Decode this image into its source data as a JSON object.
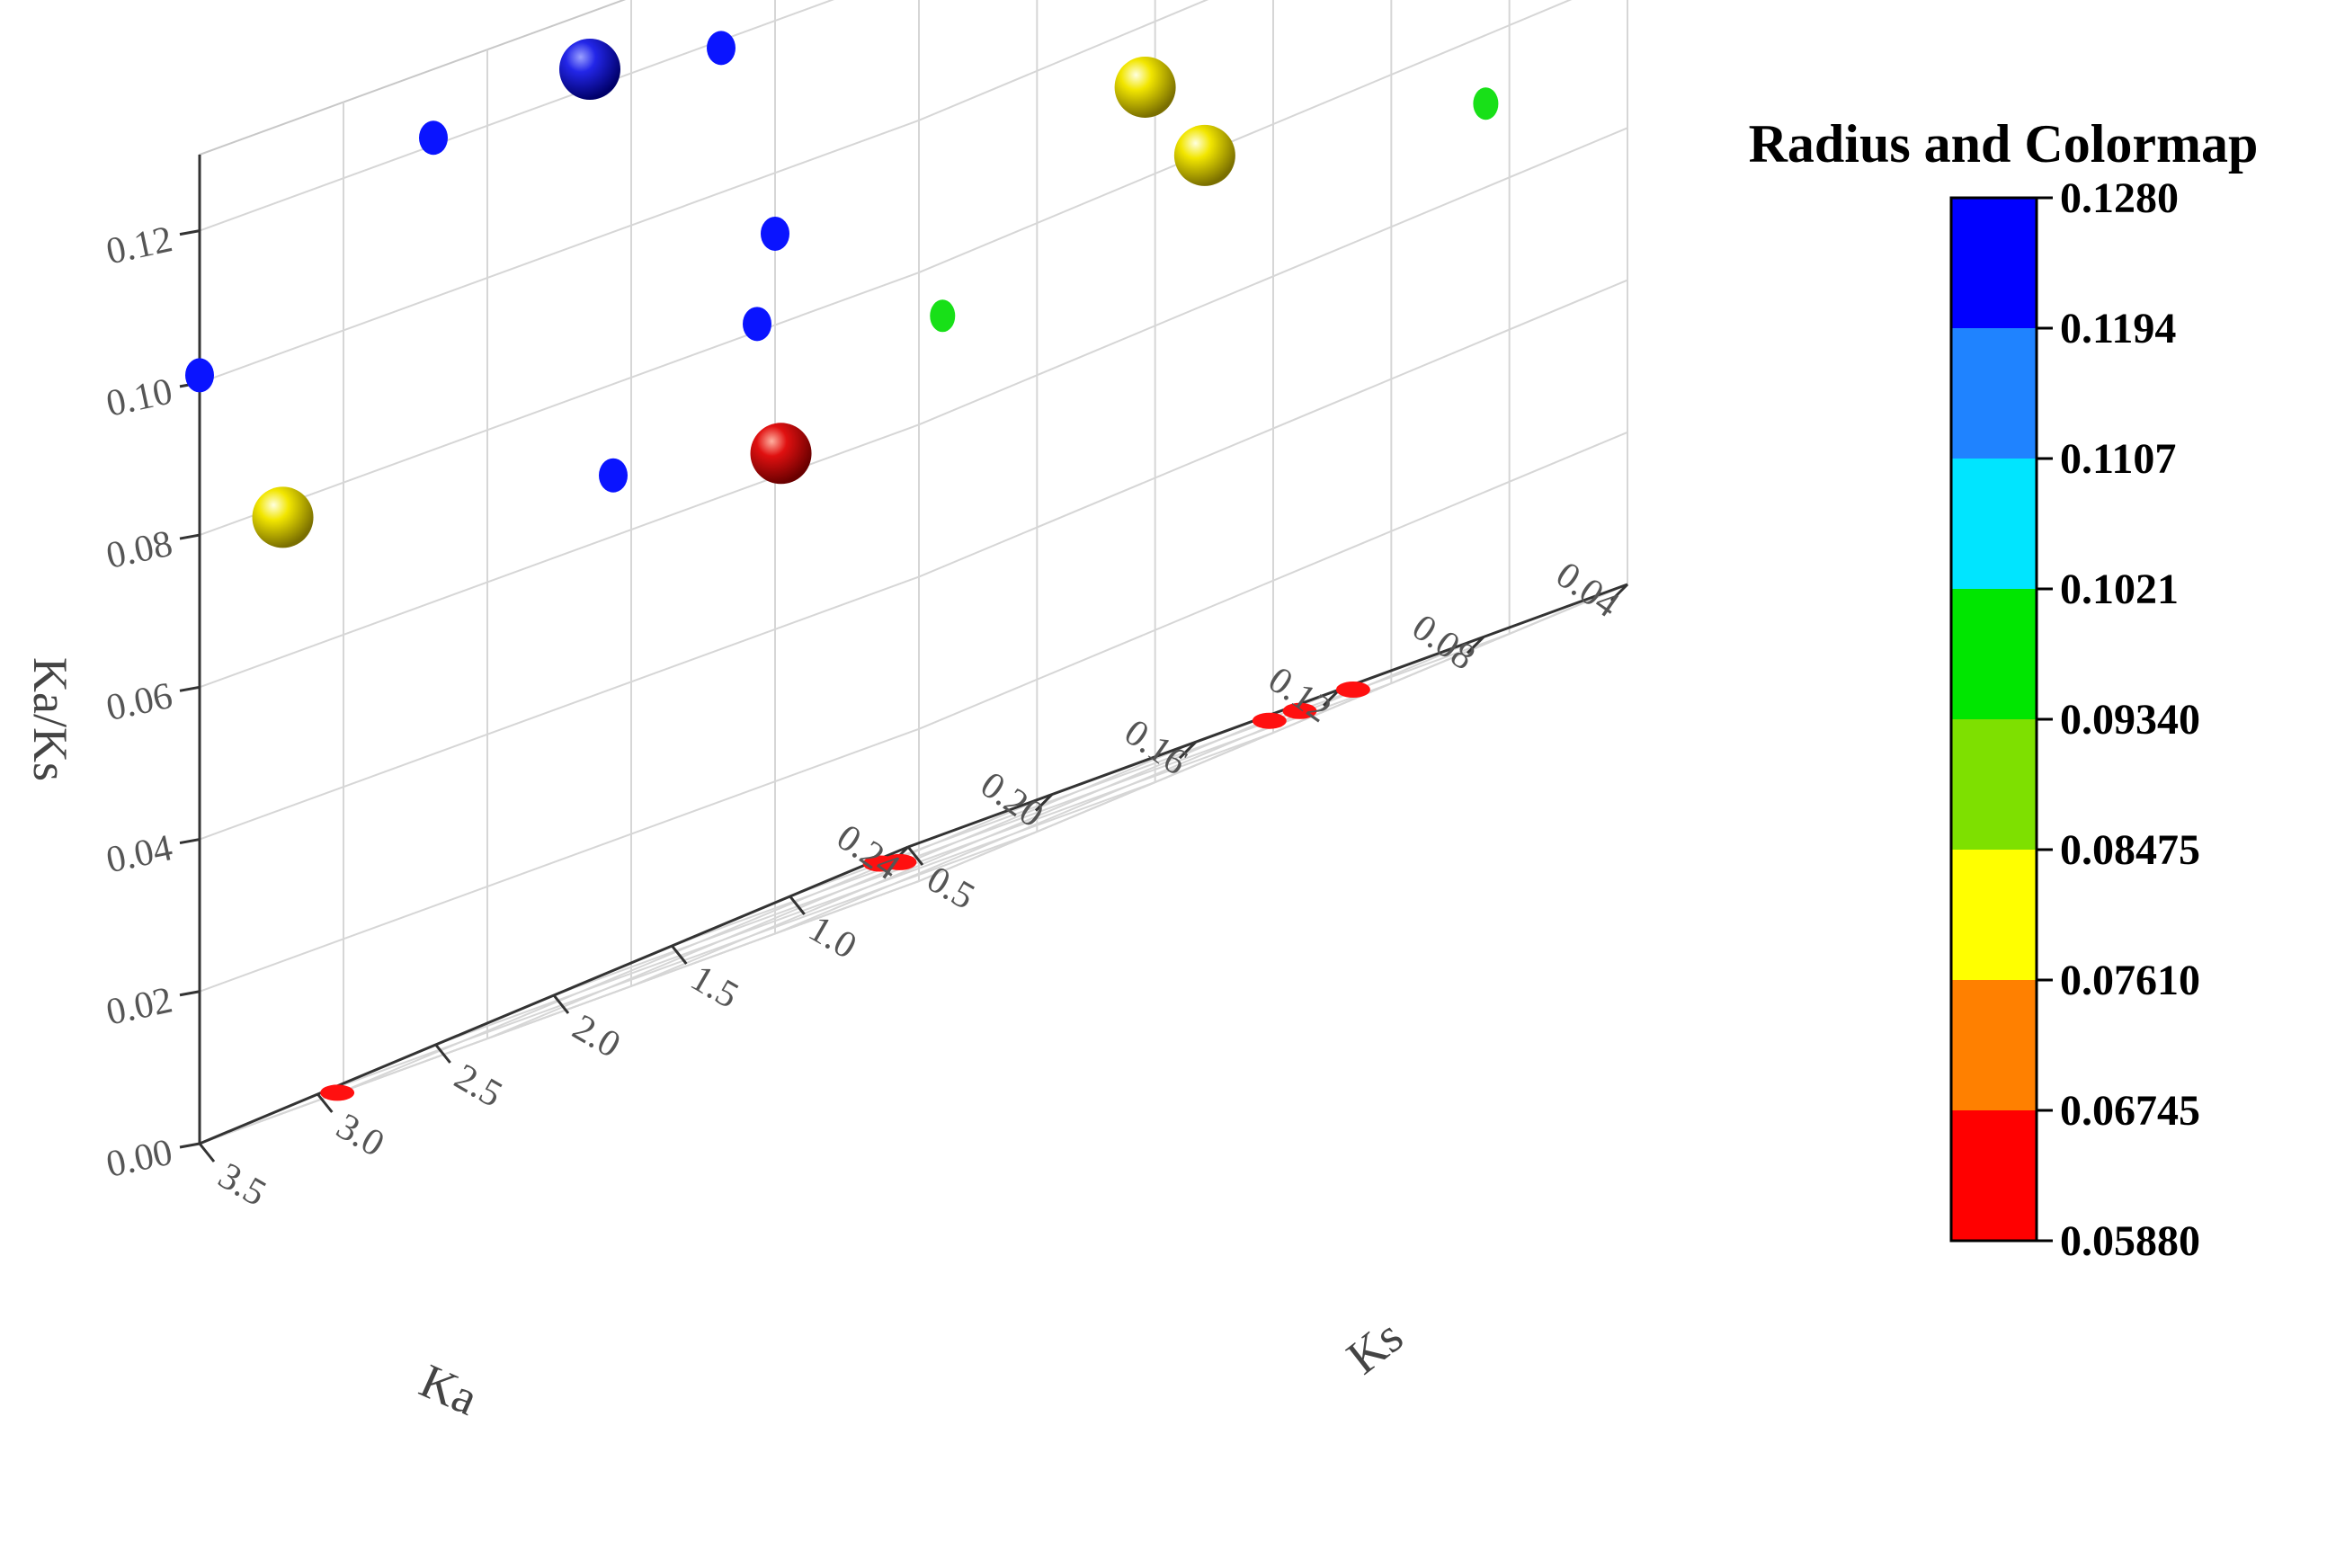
{
  "chart_data": {
    "type": "scatter",
    "subtype": "3d-bubble-scatter",
    "axes": {
      "x": {
        "label": "Ka",
        "ticks": [
          "0.04",
          "0.08",
          "0.12",
          "0.16",
          "0.20",
          "0.24"
        ],
        "range": [
          0.04,
          0.24
        ]
      },
      "y": {
        "label": "Ks",
        "ticks": [
          "0.5",
          "1.0",
          "1.5",
          "2.0",
          "2.5",
          "3.0",
          "3.5"
        ],
        "range": [
          0.5,
          3.5
        ]
      },
      "z": {
        "label": "Ka/Ks",
        "ticks": [
          "0.00",
          "0.02",
          "0.04",
          "0.06",
          "0.08",
          "0.10",
          "0.12"
        ],
        "range": [
          0.0,
          0.13
        ]
      }
    },
    "grid": true,
    "colorbar": {
      "title": "Radius and Colormap",
      "ticks": [
        "0.1280",
        "0.1194",
        "0.1107",
        "0.1021",
        "0.09340",
        "0.08475",
        "0.07610",
        "0.06745",
        "0.05880"
      ],
      "bands": [
        "#0000ff",
        "#1f83ff",
        "#00e5ff",
        "#00e600",
        "#7ee000",
        "#ffff00",
        "#ff8000",
        "#ff0000"
      ],
      "range": [
        0.0588,
        0.128
      ],
      "placement": "right"
    },
    "points": [
      {
        "ka": 0.09,
        "ks": 0.9,
        "kaks": 0.118,
        "color_value": 0.127
      },
      {
        "ka": 0.23,
        "ks": 2.0,
        "kaks": 0.12,
        "color_value": 0.127
      },
      {
        "ka": 0.115,
        "ks": 1.4,
        "kaks": 0.09,
        "color_value": 0.091
      },
      {
        "ka": 0.105,
        "ks": 1.3,
        "kaks": 0.078,
        "color_value": 0.082
      },
      {
        "ka": 0.19,
        "ks": 1.8,
        "kaks": 0.06,
        "color_value": 0.06
      },
      {
        "ka": 0.23,
        "ks": 3.3,
        "kaks": 0.078,
        "color_value": 0.082
      }
    ],
    "projections": {
      "ka_kaks_wall": [
        {
          "ka": 0.05,
          "kaks": 0.125
        },
        {
          "ka": 0.08,
          "kaks": 0.13
        },
        {
          "ka": 0.095,
          "kaks": 0.119
        },
        {
          "ka": 0.175,
          "kaks": 0.121
        },
        {
          "ka": 0.08,
          "kaks": 0.092
        },
        {
          "ka": 0.085,
          "kaks": 0.081
        },
        {
          "ka": 0.125,
          "kaks": 0.068
        },
        {
          "ka": 0.24,
          "kaks": 0.101
        }
      ],
      "ks_kaks_wall": [
        {
          "ks": 1.0,
          "kaks": 0.129
        },
        {
          "ks": 1.7,
          "kaks": 0.13
        },
        {
          "ks": 0.9,
          "kaks": 0.102
        },
        {
          "ks": 0.8,
          "kaks": 0.093
        },
        {
          "ks": 1.1,
          "kaks": 0.071
        },
        {
          "ks": 3.4,
          "kaks": 0.073
        }
      ],
      "ka_ks_floor": [
        {
          "ka": 0.09,
          "ks": 0.9
        },
        {
          "ka": 0.095,
          "ks": 1.05
        },
        {
          "ka": 0.11,
          "ks": 0.95
        },
        {
          "ka": 0.18,
          "ks": 1.45
        },
        {
          "ka": 0.215,
          "ks": 1.0
        },
        {
          "ka": 0.205,
          "ks": 3.45
        }
      ]
    }
  }
}
